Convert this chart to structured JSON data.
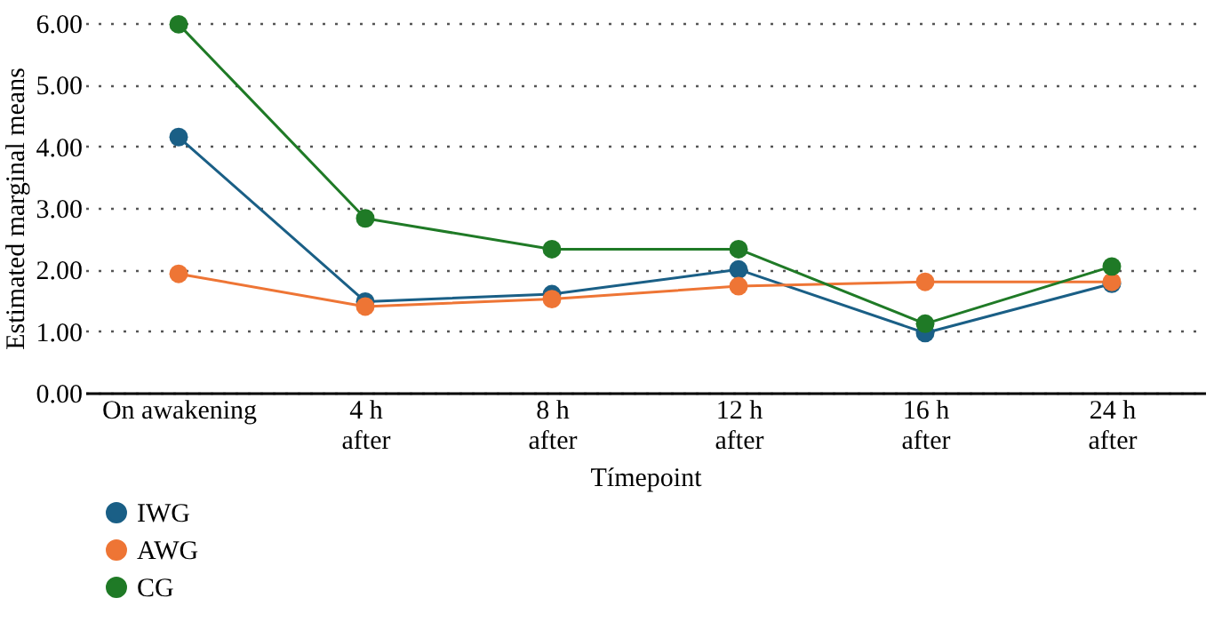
{
  "chart_data": {
    "type": "line",
    "xlabel": "Tímepoint",
    "ylabel": "Estimated marginal means",
    "categories": [
      "On awakening",
      "4 h\nafter",
      "8 h\nafter",
      "12 h\nafter",
      "16 h\nafter",
      "24 h\nafter"
    ],
    "series": [
      {
        "name": "IWG",
        "color": "#1a5f86",
        "values": [
          4.15,
          1.48,
          1.6,
          2.0,
          0.97,
          1.77
        ]
      },
      {
        "name": "AWG",
        "color": "#ee7535",
        "values": [
          1.93,
          1.4,
          1.52,
          1.73,
          1.8,
          1.8
        ]
      },
      {
        "name": "CG",
        "color": "#1f7a26",
        "values": [
          5.98,
          2.83,
          2.33,
          2.33,
          1.12,
          2.05
        ]
      }
    ],
    "ylim": [
      0,
      6
    ],
    "yticks": [
      {
        "value": 0,
        "label": "0.00"
      },
      {
        "value": 1,
        "label": "1.00"
      },
      {
        "value": 2,
        "label": "2.00"
      },
      {
        "value": 3,
        "label": "3.00"
      },
      {
        "value": 4,
        "label": "4.00"
      },
      {
        "value": 5,
        "label": "5.00"
      },
      {
        "value": 6,
        "label": "6.00"
      }
    ],
    "grid": "y",
    "legend": "bottom left",
    "marker": "circle",
    "line_style": "solid"
  }
}
